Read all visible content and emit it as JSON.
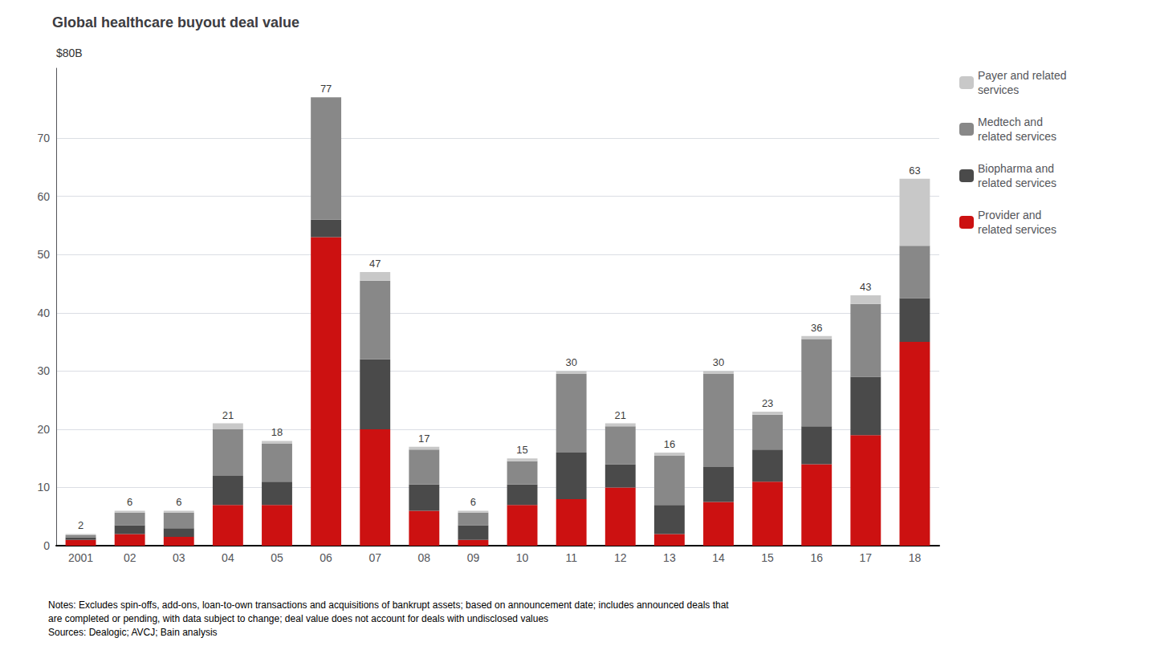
{
  "chart_data": {
    "type": "bar",
    "stacked": true,
    "title": "Global healthcare buyout deal value",
    "ylabel": "$80B",
    "categories": [
      "2001",
      "02",
      "03",
      "04",
      "05",
      "06",
      "07",
      "08",
      "09",
      "10",
      "11",
      "12",
      "13",
      "14",
      "15",
      "16",
      "17",
      "18"
    ],
    "series": [
      {
        "name": "Provider and\nrelated services",
        "color": "#cc1111",
        "values": [
          1.0,
          2.0,
          1.5,
          7.0,
          7.0,
          53.0,
          20.0,
          6.0,
          1.0,
          7.0,
          8.0,
          10.0,
          2.0,
          7.5,
          11.0,
          14.0,
          19.0,
          35.0
        ]
      },
      {
        "name": "Biopharma and\nrelated services",
        "color": "#4a4a4a",
        "values": [
          0.4,
          1.5,
          1.5,
          5.0,
          4.0,
          3.0,
          12.0,
          4.5,
          2.5,
          3.5,
          8.0,
          4.0,
          5.0,
          6.0,
          5.5,
          6.5,
          10.0,
          7.5
        ]
      },
      {
        "name": "Medtech and\nrelated services",
        "color": "#888888",
        "values": [
          0.4,
          2.2,
          2.7,
          8.0,
          6.5,
          21.0,
          13.5,
          6.0,
          2.2,
          4.0,
          13.5,
          6.5,
          8.5,
          16.0,
          6.0,
          15.0,
          12.5,
          9.0
        ]
      },
      {
        "name": "Payer and related\nservices",
        "color": "#c8c8c8",
        "values": [
          0.2,
          0.3,
          0.3,
          1.0,
          0.5,
          0.0,
          1.5,
          0.5,
          0.3,
          0.5,
          0.5,
          0.5,
          0.5,
          0.5,
          0.5,
          0.5,
          1.5,
          11.5
        ]
      }
    ],
    "totals": [
      2,
      6,
      6,
      21,
      18,
      77,
      47,
      17,
      6,
      15,
      30,
      21,
      16,
      30,
      23,
      36,
      43,
      63
    ],
    "ylim": [
      0,
      82
    ],
    "yticks": [
      0,
      10,
      20,
      30,
      40,
      50,
      60,
      70
    ],
    "grid": true,
    "legend": "right",
    "notes": "Notes: Excludes spin-offs, add-ons, loan-to-own transactions and acquisitions of bankrupt assets; based on announcement date; includes announced deals that\nare completed or pending, with data subject to change; deal value does not account for deals with undisclosed values\nSources: Dealogic; AVCJ; Bain analysis"
  }
}
